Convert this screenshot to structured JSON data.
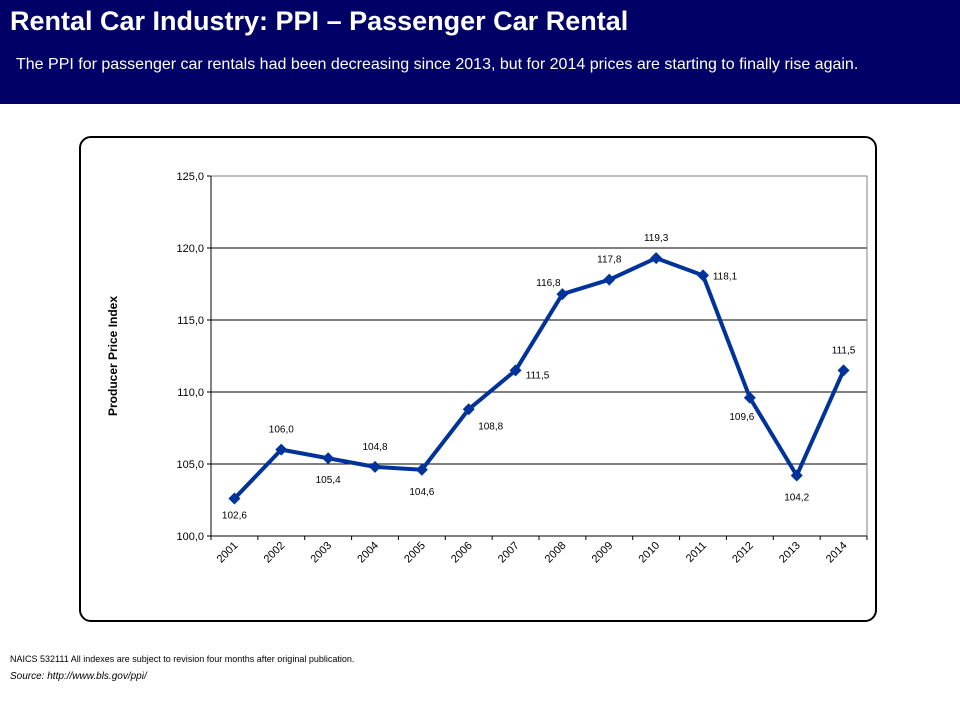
{
  "header": {
    "title": "Rental Car Industry:  PPI – Passenger Car Rental",
    "subtitle": "The PPI for passenger car rentals had been decreasing since 2013, but for 2014 prices are starting to finally rise again."
  },
  "footer": {
    "note": "NAICS 532111  All indexes are subject to revision four months after original publication.",
    "source": "Source:  http://www.bls.gov/ppi/"
  },
  "colors": {
    "header_bg": "#000066",
    "series": "#003399"
  },
  "chart_data": {
    "type": "line",
    "title": "",
    "xlabel": "",
    "ylabel": "Producer Price Index",
    "categories": [
      "2001",
      "2002",
      "2003",
      "2004",
      "2005",
      "2006",
      "2007",
      "2008",
      "2009",
      "2010",
      "2011",
      "2012",
      "2013",
      "2014"
    ],
    "series": [
      {
        "values": [
          102.6,
          106.0,
          105.4,
          104.8,
          104.6,
          108.8,
          111.5,
          116.8,
          117.8,
          119.3,
          118.1,
          109.6,
          104.2,
          111.5
        ],
        "labels": [
          "102,6",
          "106,0",
          "105,4",
          "104,8",
          "104,6",
          "108,8",
          "111,5",
          "116,8",
          "117,8",
          "119,3",
          "118,1",
          "109,6",
          "104,2",
          "111,5"
        ]
      }
    ],
    "ylim": [
      100,
      125
    ],
    "yticks": [
      100,
      105,
      110,
      115,
      120,
      125
    ],
    "ytick_labels": [
      "100,0",
      "105,0",
      "110,0",
      "115,0",
      "120,0",
      "125,0"
    ],
    "grid": true,
    "legend": "none",
    "marker": "diamond"
  }
}
